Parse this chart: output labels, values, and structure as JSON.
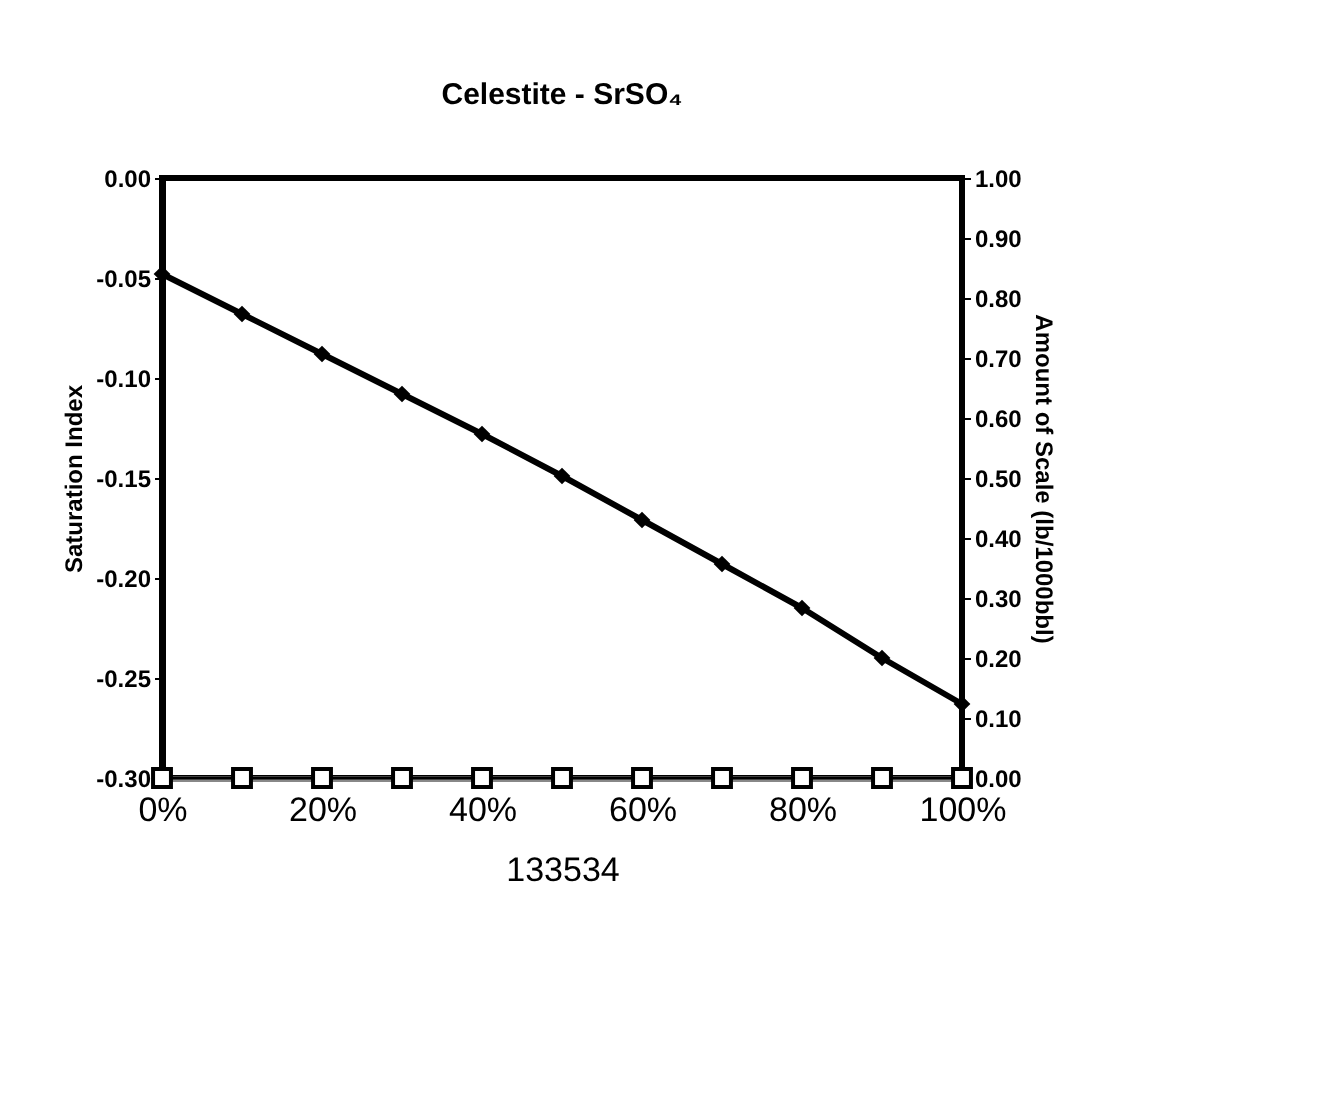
{
  "chart_data": {
    "type": "line",
    "title": "Celestite - SrSO₄",
    "xlabel": "133534",
    "ylabel": "Saturation Index",
    "y2label": "Amount of Scale (lb/1000bbl)",
    "x": [
      0,
      10,
      20,
      30,
      40,
      50,
      60,
      70,
      80,
      90,
      100
    ],
    "xlim": [
      0,
      100
    ],
    "xticks": [
      {
        "value": 0,
        "label": "0%"
      },
      {
        "value": 20,
        "label": "20%"
      },
      {
        "value": 40,
        "label": "40%"
      },
      {
        "value": 60,
        "label": "60%"
      },
      {
        "value": 80,
        "label": "80%"
      },
      {
        "value": 100,
        "label": "100%"
      }
    ],
    "ylim": [
      -0.3,
      0
    ],
    "yticks": [
      {
        "value": -0.3,
        "label": "-0.30"
      },
      {
        "value": -0.25,
        "label": "-0.25"
      },
      {
        "value": -0.2,
        "label": "-0.20"
      },
      {
        "value": -0.15,
        "label": "-0.15"
      },
      {
        "value": -0.1,
        "label": "-0.10"
      },
      {
        "value": -0.05,
        "label": "-0.05"
      },
      {
        "value": 0,
        "label": "0.00"
      }
    ],
    "y2lim": [
      0,
      1
    ],
    "y2ticks": [
      {
        "value": 0,
        "label": "0.00"
      },
      {
        "value": 0.1,
        "label": "0.10"
      },
      {
        "value": 0.2,
        "label": "0.20"
      },
      {
        "value": 0.3,
        "label": "0.30"
      },
      {
        "value": 0.4,
        "label": "0.40"
      },
      {
        "value": 0.5,
        "label": "0.50"
      },
      {
        "value": 0.6,
        "label": "0.60"
      },
      {
        "value": 0.7,
        "label": "0.70"
      },
      {
        "value": 0.8,
        "label": "0.80"
      },
      {
        "value": 0.9,
        "label": "0.90"
      },
      {
        "value": 1,
        "label": "1.00"
      }
    ],
    "series": [
      {
        "color": "#000000",
        "marker": "diamond",
        "values": [
          -0.048,
          -0.068,
          -0.088,
          -0.108,
          -0.128,
          -0.149,
          -0.171,
          -0.193,
          -0.215,
          -0.24,
          -0.263
        ]
      },
      {
        "color": "#000000",
        "marker": "square",
        "axis": "y2",
        "values": [
          0,
          0,
          0,
          0,
          0,
          0,
          0,
          0,
          0,
          0,
          0
        ]
      }
    ],
    "grid": false
  }
}
